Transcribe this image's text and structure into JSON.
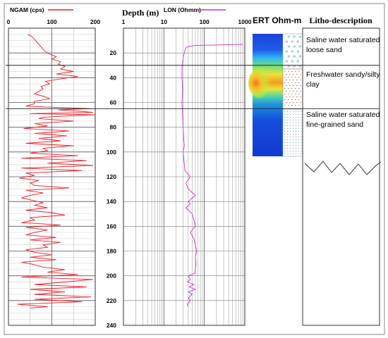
{
  "chart_data": {
    "type": "line",
    "legend": {
      "ngam_label": "NGAM (cps)",
      "lon_label": "LON (Ohmm)",
      "ngam_color": "#ee1c25",
      "lon_color": "#cc33cc"
    },
    "depth_axis": {
      "label": "Depth (m)",
      "range": [
        0,
        240
      ],
      "ticks": [
        "20",
        "40",
        "60",
        "80",
        "100",
        "120",
        "140",
        "160",
        "180",
        "200",
        "220",
        "240"
      ]
    },
    "ngam_axis": {
      "range": [
        0,
        200
      ],
      "ticks": [
        "0",
        "100",
        "200"
      ]
    },
    "lon_axis": {
      "scale": "log",
      "range": [
        1,
        1000
      ],
      "ticks": [
        "1",
        "10",
        "100",
        "1000"
      ]
    },
    "boundaries": [
      30,
      65
    ],
    "ngam_series": {
      "name": "NGAM",
      "depth": [
        5,
        7,
        9,
        11,
        13,
        15,
        17,
        19,
        21,
        23,
        25,
        27,
        29,
        31,
        33,
        35,
        37,
        39,
        41,
        43,
        45,
        47,
        49,
        51,
        53,
        55,
        57,
        59,
        61,
        63,
        65,
        66,
        67,
        68,
        69,
        70,
        71,
        72,
        73,
        75,
        77,
        79,
        81,
        83,
        85,
        87,
        89,
        91,
        93,
        95,
        97,
        99,
        101,
        103,
        105,
        107,
        109,
        111,
        113,
        115,
        117,
        119,
        121,
        123,
        125,
        127,
        129,
        131,
        133,
        135,
        137,
        139,
        141,
        143,
        145,
        147,
        149,
        151,
        153,
        155,
        157,
        159,
        161,
        163,
        165,
        167,
        169,
        171,
        173,
        175,
        177,
        179,
        181,
        183,
        185,
        187,
        189,
        191,
        193,
        195,
        197,
        199,
        201,
        203,
        205,
        207,
        209,
        211,
        213,
        215,
        217,
        219,
        221,
        223,
        225,
        226
      ],
      "value": [
        45,
        55,
        60,
        65,
        70,
        75,
        80,
        85,
        95,
        110,
        100,
        120,
        115,
        130,
        120,
        150,
        110,
        160,
        120,
        85,
        95,
        75,
        80,
        70,
        60,
        80,
        95,
        60,
        60,
        40,
        190,
        115,
        160,
        195,
        50,
        200,
        130,
        80,
        70,
        150,
        60,
        90,
        35,
        140,
        60,
        135,
        70,
        120,
        40,
        150,
        80,
        90,
        50,
        160,
        30,
        180,
        90,
        195,
        30,
        170,
        40,
        60,
        25,
        70,
        50,
        60,
        140,
        40,
        80,
        50,
        30,
        55,
        80,
        60,
        90,
        40,
        100,
        130,
        50,
        60,
        30,
        120,
        40,
        90,
        60,
        40,
        110,
        50,
        120,
        80,
        90,
        40,
        60,
        100,
        50,
        110,
        30,
        60,
        80,
        130,
        90,
        160,
        30,
        195,
        130,
        60,
        180,
        50,
        130,
        60,
        190,
        60,
        170,
        20,
        90,
        50
      ]
    },
    "lon_series": {
      "name": "LON",
      "depth": [
        13,
        14,
        15,
        16,
        18,
        20,
        24,
        28,
        31,
        40,
        50,
        60,
        70,
        80,
        90,
        95,
        100,
        105,
        110,
        115,
        120,
        125,
        130,
        135,
        140,
        142,
        145,
        150,
        155,
        160,
        165,
        170,
        175,
        180,
        185,
        190,
        195,
        198,
        200,
        203,
        205,
        207,
        209,
        211,
        213,
        215,
        218,
        220,
        223,
        225
      ],
      "value": [
        900,
        60,
        38,
        35,
        33,
        32,
        30,
        29,
        28,
        28,
        29,
        28,
        29,
        30,
        31,
        32,
        30,
        31,
        32,
        33,
        45,
        35,
        40,
        60,
        40,
        45,
        35,
        50,
        55,
        60,
        45,
        55,
        60,
        65,
        60,
        62,
        60,
        58,
        40,
        45,
        38,
        55,
        42,
        60,
        40,
        50,
        40,
        45,
        38,
        40
      ]
    }
  },
  "ert": {
    "title": "ERT Ohm-m"
  },
  "litho": {
    "title": "Litho-description",
    "units": [
      {
        "text_lines": [
          "Saline water saturated",
          "loose sand"
        ]
      },
      {
        "text_lines": [
          "Freshwater sandy/silty",
          "clay"
        ]
      },
      {
        "text_lines": [
          "Saline water saturated",
          "fine-grained sand"
        ]
      }
    ]
  }
}
